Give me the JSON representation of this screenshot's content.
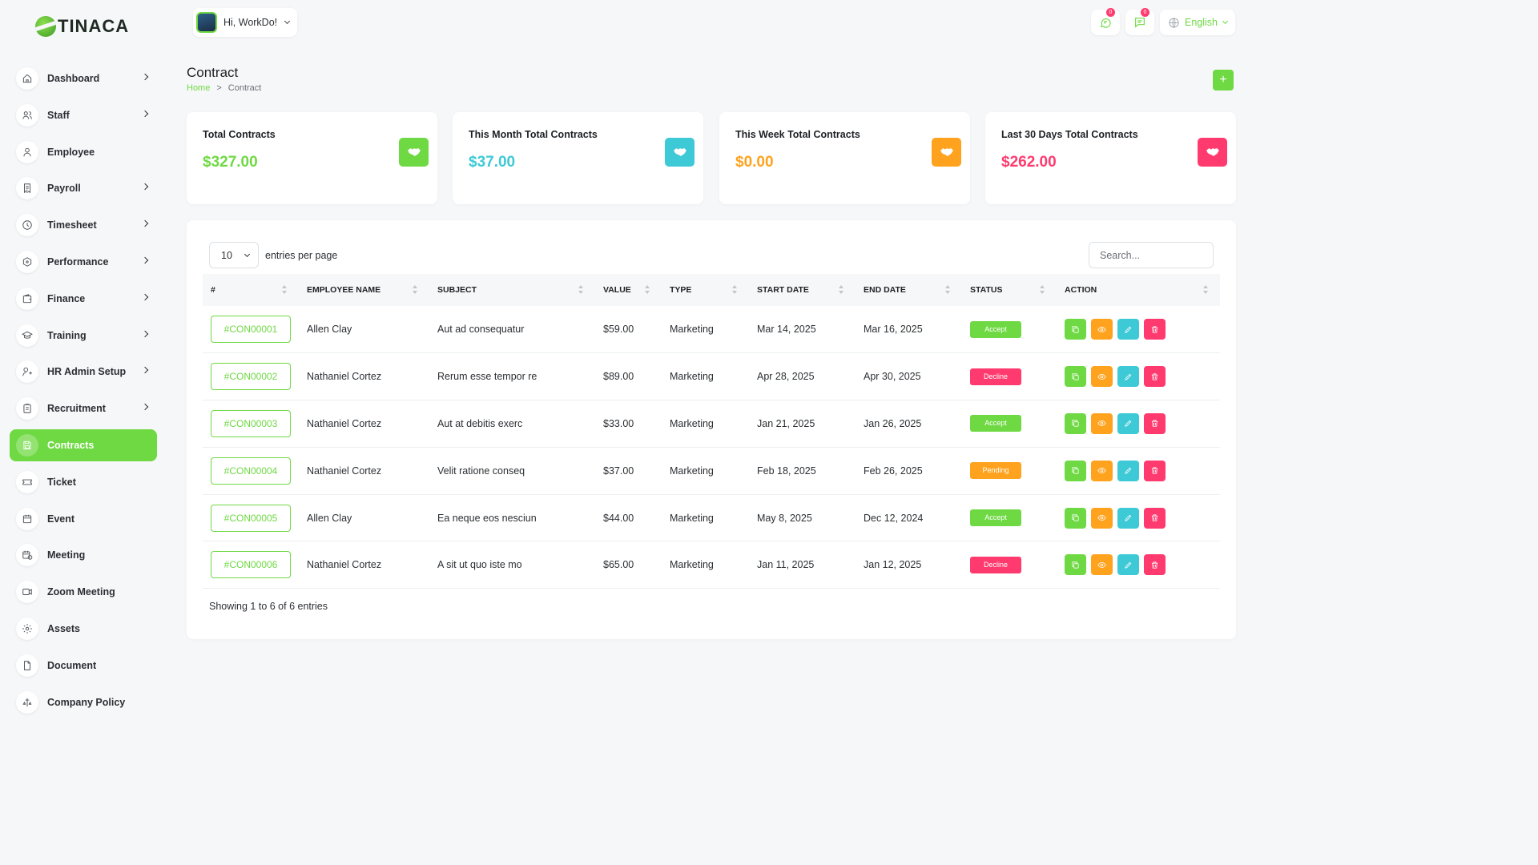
{
  "app": {
    "logo_text": "TINACA"
  },
  "header": {
    "greeting": "Hi, WorkDo!",
    "chat_badge": "0",
    "msg_badge": "0",
    "language": "English"
  },
  "sidebar": {
    "items": [
      {
        "label": "Dashboard",
        "icon": "home-icon",
        "has_children": true
      },
      {
        "label": "Staff",
        "icon": "users-icon",
        "has_children": true
      },
      {
        "label": "Employee",
        "icon": "user-icon",
        "has_children": false
      },
      {
        "label": "Payroll",
        "icon": "receipt-icon",
        "has_children": true
      },
      {
        "label": "Timesheet",
        "icon": "clock-icon",
        "has_children": true
      },
      {
        "label": "Performance",
        "icon": "hexagon-icon",
        "has_children": true
      },
      {
        "label": "Finance",
        "icon": "wallet-icon",
        "has_children": true
      },
      {
        "label": "Training",
        "icon": "school-icon",
        "has_children": true
      },
      {
        "label": "HR Admin Setup",
        "icon": "user-plus-icon",
        "has_children": true
      },
      {
        "label": "Recruitment",
        "icon": "clipboard-icon",
        "has_children": true
      },
      {
        "label": "Contracts",
        "icon": "device-floppy-icon",
        "has_children": false,
        "active": true
      },
      {
        "label": "Ticket",
        "icon": "ticket-icon",
        "has_children": false
      },
      {
        "label": "Event",
        "icon": "calendar-icon",
        "has_children": false
      },
      {
        "label": "Meeting",
        "icon": "calendar-time-icon",
        "has_children": false
      },
      {
        "label": "Zoom Meeting",
        "icon": "video-icon",
        "has_children": false
      },
      {
        "label": "Assets",
        "icon": "gear-icon",
        "has_children": false
      },
      {
        "label": "Document",
        "icon": "file-icon",
        "has_children": false
      },
      {
        "label": "Company Policy",
        "icon": "policy-icon",
        "has_children": false
      }
    ]
  },
  "page": {
    "title": "Contract",
    "breadcrumb": {
      "home": "Home",
      "separator": ">",
      "current": "Contract"
    },
    "add_label": "+"
  },
  "stats": [
    {
      "title": "Total Contracts",
      "value": "$327.00",
      "color": "#6fd943"
    },
    {
      "title": "This Month Total Contracts",
      "value": "$37.00",
      "color": "#3ec9d6"
    },
    {
      "title": "This Week Total Contracts",
      "value": "$0.00",
      "color": "#ffa21d"
    },
    {
      "title": "Last 30 Days Total Contracts",
      "value": "$262.00",
      "color": "#ff3a6e"
    }
  ],
  "table": {
    "per_page": "10",
    "per_page_label": "entries per page",
    "search_placeholder": "Search...",
    "columns": [
      "#",
      "EMPLOYEE NAME",
      "SUBJECT",
      "VALUE",
      "TYPE",
      "START DATE",
      "END DATE",
      "STATUS",
      "ACTION"
    ],
    "rows": [
      {
        "id": "#CON00001",
        "employee": "Allen Clay",
        "subject": "Aut ad consequatur",
        "value": "$59.00",
        "type": "Marketing",
        "start": "Mar 14, 2025",
        "end": "Mar 16, 2025",
        "status": "Accept"
      },
      {
        "id": "#CON00002",
        "employee": "Nathaniel Cortez",
        "subject": "Rerum esse tempor re",
        "value": "$89.00",
        "type": "Marketing",
        "start": "Apr 28, 2025",
        "end": "Apr 30, 2025",
        "status": "Decline"
      },
      {
        "id": "#CON00003",
        "employee": "Nathaniel Cortez",
        "subject": "Aut at debitis exerc",
        "value": "$33.00",
        "type": "Marketing",
        "start": "Jan 21, 2025",
        "end": "Jan 26, 2025",
        "status": "Accept"
      },
      {
        "id": "#CON00004",
        "employee": "Nathaniel Cortez",
        "subject": "Velit ratione conseq",
        "value": "$37.00",
        "type": "Marketing",
        "start": "Feb 18, 2025",
        "end": "Feb 26, 2025",
        "status": "Pending"
      },
      {
        "id": "#CON00005",
        "employee": "Allen Clay",
        "subject": "Ea neque eos nesciun",
        "value": "$44.00",
        "type": "Marketing",
        "start": "May 8, 2025",
        "end": "Dec 12, 2024",
        "status": "Accept"
      },
      {
        "id": "#CON00006",
        "employee": "Nathaniel Cortez",
        "subject": "A sit ut quo iste mo",
        "value": "$65.00",
        "type": "Marketing",
        "start": "Jan 11, 2025",
        "end": "Jan 12, 2025",
        "status": "Decline"
      }
    ],
    "status_colors": {
      "Accept": "#6fd943",
      "Decline": "#ff3a6e",
      "Pending": "#ffa21d"
    },
    "actions": [
      {
        "name": "copy-button",
        "icon": "copy-icon",
        "color": "#6fd943"
      },
      {
        "name": "view-button",
        "icon": "eye-icon",
        "color": "#ffa21d"
      },
      {
        "name": "edit-button",
        "icon": "pencil-icon",
        "color": "#3ec9d6"
      },
      {
        "name": "delete-button",
        "icon": "trash-icon",
        "color": "#ff3a6e"
      }
    ],
    "footer": "Showing 1 to 6 of 6 entries"
  },
  "colors": {
    "accent": "#6fd943",
    "cyan": "#3ec9d6",
    "orange": "#ffa21d",
    "pink": "#ff3a6e"
  }
}
